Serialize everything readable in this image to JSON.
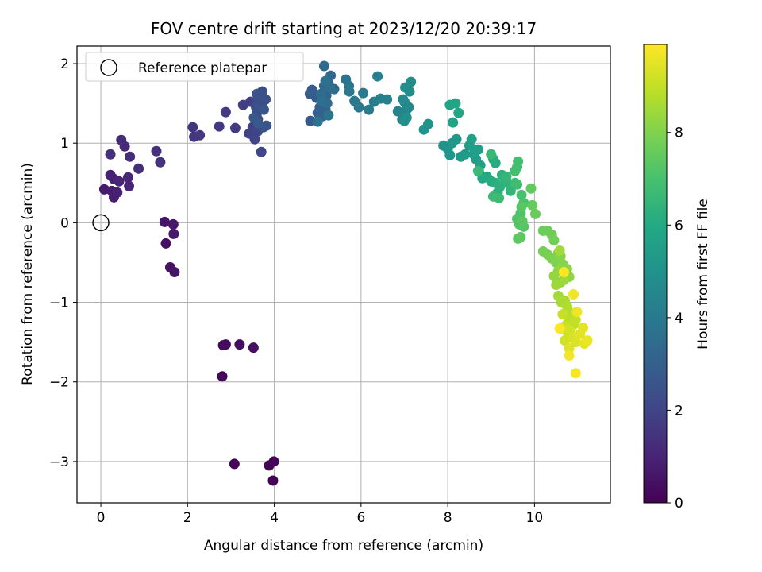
{
  "chart_data": {
    "type": "scatter",
    "title": "FOV centre drift starting at 2023/12/20 20:39:17",
    "xlabel": "Angular distance from reference (arcmin)",
    "ylabel": "Rotation from reference (arcmin)",
    "xlim": [
      -0.55,
      11.75
    ],
    "ylim": [
      -3.52,
      2.22
    ],
    "xticks": [
      "0",
      "2",
      "4",
      "6",
      "8",
      "10"
    ],
    "yticks": [
      "−3",
      "−2",
      "−1",
      "0",
      "1",
      "2"
    ],
    "grid": true,
    "legend": {
      "placement": "top-left",
      "entries": [
        "Reference platepar"
      ]
    },
    "reference_point": {
      "x": 0,
      "y": 0
    },
    "colorbar": {
      "label": "Hours from first FF file",
      "range": [
        0,
        9.9
      ],
      "ticks": [
        "0",
        "2",
        "4",
        "6",
        "8"
      ],
      "colormap": "viridis"
    },
    "series": [
      {
        "points": [
          [
            3.97,
            -3.24
          ],
          [
            3.88,
            -3.05
          ],
          [
            3.99,
            -3.0
          ],
          [
            3.08,
            -3.03
          ],
          [
            2.8,
            -1.93
          ],
          [
            2.82,
            -1.54
          ],
          [
            2.88,
            -1.53
          ],
          [
            3.2,
            -1.53
          ],
          [
            3.52,
            -1.57
          ],
          [
            1.5,
            -0.26
          ],
          [
            1.6,
            -0.56
          ],
          [
            1.7,
            -0.62
          ],
          [
            1.47,
            0.01
          ],
          [
            1.67,
            -0.02
          ],
          [
            1.68,
            -0.14
          ],
          [
            0.08,
            0.42
          ],
          [
            0.25,
            0.4
          ],
          [
            0.3,
            0.32
          ],
          [
            0.38,
            0.38
          ],
          [
            0.22,
            0.6
          ],
          [
            0.3,
            0.55
          ],
          [
            0.42,
            0.52
          ],
          [
            0.65,
            0.46
          ],
          [
            0.63,
            0.57
          ],
          [
            0.55,
            0.96
          ],
          [
            0.47,
            1.04
          ],
          [
            0.67,
            0.83
          ],
          [
            0.87,
            0.68
          ],
          [
            0.22,
            0.86
          ],
          [
            1.28,
            0.9
          ],
          [
            1.37,
            0.76
          ],
          [
            2.12,
            1.2
          ],
          [
            2.15,
            1.08
          ],
          [
            2.28,
            1.1
          ],
          [
            2.73,
            1.21
          ],
          [
            2.88,
            1.39
          ],
          [
            3.1,
            1.19
          ],
          [
            3.28,
            1.48
          ],
          [
            3.45,
            1.52
          ],
          [
            3.5,
            1.2
          ],
          [
            3.42,
            1.12
          ],
          [
            3.55,
            1.05
          ],
          [
            3.62,
            1.15
          ],
          [
            3.7,
            0.89
          ],
          [
            3.62,
            1.3
          ],
          [
            3.6,
            1.38
          ],
          [
            3.65,
            1.42
          ],
          [
            3.72,
            1.48
          ],
          [
            3.62,
            1.55
          ],
          [
            3.72,
            1.65
          ],
          [
            3.8,
            1.55
          ],
          [
            3.58,
            1.45
          ],
          [
            3.6,
            1.62
          ],
          [
            3.75,
            1.2
          ],
          [
            3.82,
            1.22
          ],
          [
            3.76,
            1.42
          ],
          [
            3.53,
            1.32
          ],
          [
            3.63,
            1.25
          ],
          [
            4.83,
            1.28
          ],
          [
            4.82,
            1.62
          ],
          [
            4.87,
            1.67
          ],
          [
            4.97,
            1.57
          ],
          [
            5.05,
            1.45
          ],
          [
            5.0,
            1.38
          ],
          [
            5.12,
            1.34
          ],
          [
            5.18,
            1.42
          ],
          [
            5.2,
            1.6
          ],
          [
            5.15,
            1.72
          ],
          [
            5.25,
            1.75
          ],
          [
            5.3,
            1.85
          ],
          [
            5.38,
            1.68
          ],
          [
            5.15,
            1.97
          ],
          [
            5.08,
            1.62
          ],
          [
            5.22,
            1.5
          ],
          [
            5.1,
            1.53
          ],
          [
            5.28,
            1.7
          ],
          [
            5.18,
            1.78
          ],
          [
            5.0,
            1.27
          ],
          [
            5.25,
            1.35
          ],
          [
            5.65,
            1.8
          ],
          [
            5.72,
            1.72
          ],
          [
            5.73,
            1.65
          ],
          [
            5.85,
            1.53
          ],
          [
            5.95,
            1.45
          ],
          [
            6.05,
            1.63
          ],
          [
            6.18,
            1.42
          ],
          [
            6.3,
            1.52
          ],
          [
            6.38,
            1.84
          ],
          [
            6.45,
            1.56
          ],
          [
            6.6,
            1.55
          ],
          [
            6.85,
            1.4
          ],
          [
            6.95,
            1.3
          ],
          [
            7.0,
            1.35
          ],
          [
            7.05,
            1.42
          ],
          [
            7.0,
            1.52
          ],
          [
            7.05,
            1.48
          ],
          [
            7.1,
            1.45
          ],
          [
            6.97,
            1.55
          ],
          [
            7.02,
            1.7
          ],
          [
            7.15,
            1.77
          ],
          [
            7.12,
            1.65
          ],
          [
            7.0,
            1.28
          ],
          [
            7.05,
            1.32
          ],
          [
            7.45,
            1.17
          ],
          [
            7.55,
            1.24
          ],
          [
            7.9,
            0.97
          ],
          [
            8.0,
            0.93
          ],
          [
            8.05,
            0.85
          ],
          [
            8.1,
            1.0
          ],
          [
            8.2,
            1.05
          ],
          [
            8.3,
            0.83
          ],
          [
            8.4,
            0.86
          ],
          [
            8.5,
            0.97
          ],
          [
            8.6,
            0.86
          ],
          [
            8.65,
            0.8
          ],
          [
            8.75,
            0.72
          ],
          [
            8.7,
            0.92
          ],
          [
            8.55,
            1.05
          ],
          [
            8.12,
            1.26
          ],
          [
            8.05,
            1.48
          ],
          [
            8.18,
            1.5
          ],
          [
            8.25,
            1.38
          ],
          [
            8.72,
            0.64
          ],
          [
            8.8,
            0.56
          ],
          [
            8.9,
            0.58
          ],
          [
            9.0,
            0.52
          ],
          [
            9.05,
            0.8
          ],
          [
            9.1,
            0.75
          ],
          [
            9.1,
            0.5
          ],
          [
            9.15,
            0.38
          ],
          [
            9.2,
            0.45
          ],
          [
            9.25,
            0.6
          ],
          [
            9.32,
            0.55
          ],
          [
            9.4,
            0.49
          ],
          [
            9.45,
            0.4
          ],
          [
            9.35,
            0.58
          ],
          [
            9.0,
            0.86
          ],
          [
            8.7,
            0.65
          ],
          [
            9.05,
            0.33
          ],
          [
            9.18,
            0.31
          ],
          [
            9.55,
            0.5
          ],
          [
            9.6,
            0.48
          ],
          [
            9.6,
            0.7
          ],
          [
            9.62,
            0.77
          ],
          [
            9.55,
            0.65
          ],
          [
            9.7,
            0.35
          ],
          [
            9.75,
            0.25
          ],
          [
            9.68,
            0.12
          ],
          [
            9.6,
            0.05
          ],
          [
            9.65,
            -0.02
          ],
          [
            9.75,
            -0.05
          ],
          [
            9.7,
            0.2
          ],
          [
            9.72,
            0.02
          ],
          [
            9.62,
            -0.2
          ],
          [
            9.68,
            -0.18
          ],
          [
            9.92,
            0.43
          ],
          [
            9.95,
            0.22
          ],
          [
            10.02,
            0.11
          ],
          [
            10.2,
            -0.1
          ],
          [
            10.3,
            -0.1
          ],
          [
            10.4,
            -0.15
          ],
          [
            10.45,
            -0.22
          ],
          [
            10.2,
            -0.36
          ],
          [
            10.3,
            -0.4
          ],
          [
            10.4,
            -0.45
          ],
          [
            10.5,
            -0.5
          ],
          [
            10.55,
            -0.38
          ],
          [
            10.6,
            -0.42
          ],
          [
            10.65,
            -0.52
          ],
          [
            10.75,
            -0.58
          ],
          [
            10.8,
            -0.68
          ],
          [
            10.55,
            -0.6
          ],
          [
            10.45,
            -0.67
          ],
          [
            10.6,
            -0.75
          ],
          [
            10.5,
            -0.78
          ],
          [
            10.68,
            -0.72
          ],
          [
            10.58,
            -0.35
          ],
          [
            10.55,
            -0.92
          ],
          [
            10.62,
            -1.0
          ],
          [
            10.7,
            -0.98
          ],
          [
            10.75,
            -1.05
          ],
          [
            10.8,
            -1.12
          ],
          [
            10.72,
            -1.15
          ],
          [
            10.85,
            -1.2
          ],
          [
            10.78,
            -1.25
          ],
          [
            10.9,
            -1.28
          ],
          [
            10.95,
            -1.22
          ],
          [
            10.65,
            -1.15
          ],
          [
            10.7,
            -1.3
          ],
          [
            10.78,
            -1.42
          ],
          [
            10.7,
            -1.48
          ],
          [
            10.62,
            -1.33
          ],
          [
            10.82,
            -1.35
          ],
          [
            10.88,
            -1.45
          ],
          [
            10.95,
            -1.5
          ],
          [
            10.8,
            -1.58
          ],
          [
            11.05,
            -1.4
          ],
          [
            11.12,
            -1.32
          ],
          [
            11.15,
            -1.52
          ],
          [
            11.22,
            -1.48
          ],
          [
            10.98,
            -1.12
          ],
          [
            10.9,
            -0.9
          ],
          [
            10.8,
            -1.67
          ],
          [
            10.95,
            -1.89
          ],
          [
            10.58,
            -1.33
          ],
          [
            10.68,
            -0.62
          ]
        ]
      }
    ]
  }
}
